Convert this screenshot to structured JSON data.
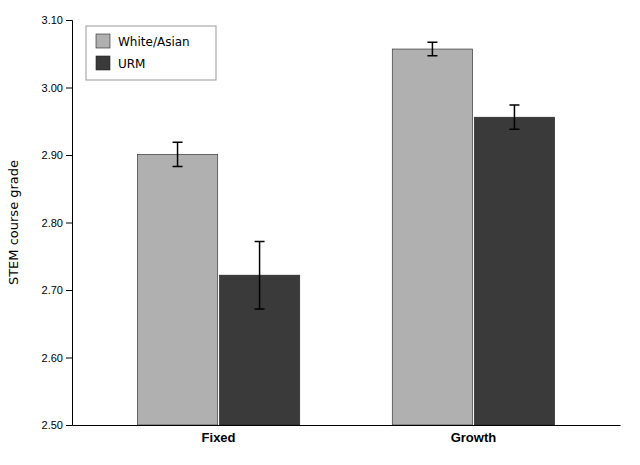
{
  "chart_data": {
    "type": "bar",
    "categories": [
      "Fixed",
      "Growth"
    ],
    "series": [
      {
        "name": "White/Asian",
        "color": "#b0b0b0",
        "values": [
          2.901,
          3.057
        ],
        "errors": [
          0.018,
          0.01
        ]
      },
      {
        "name": "URM",
        "color": "#3a3a3a",
        "values": [
          2.722,
          2.956
        ],
        "errors": [
          0.05,
          0.018
        ]
      }
    ],
    "ylabel": "STEM course grade",
    "ylim": [
      2.5,
      3.1
    ],
    "yticks": [
      {
        "value": 2.5,
        "label": "2.50"
      },
      {
        "value": 2.6,
        "label": "2.60"
      },
      {
        "value": 2.7,
        "label": "2.70"
      },
      {
        "value": 2.8,
        "label": "2.80"
      },
      {
        "value": 2.9,
        "label": "2.90"
      },
      {
        "value": 3.0,
        "label": "3.00"
      },
      {
        "value": 3.1,
        "label": "3.10"
      }
    ],
    "legend": "upper-left"
  }
}
